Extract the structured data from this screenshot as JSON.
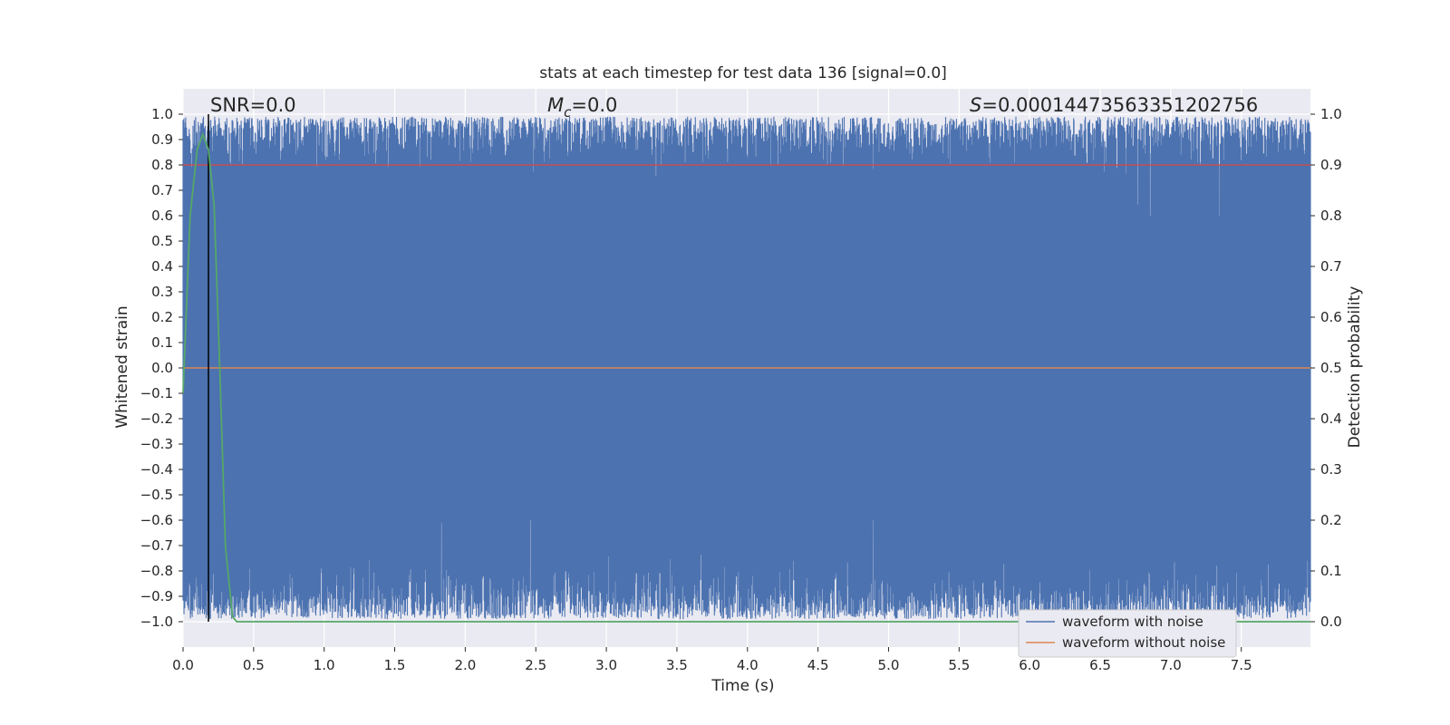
{
  "chart_data": {
    "type": "line",
    "title": "stats at each timestep for test data 136 [signal=0.0]",
    "xlabel": "Time (s)",
    "ylabel": "Whitened strain",
    "y2label": "Detection probability",
    "xlim": [
      0.0,
      7.99
    ],
    "ylim": [
      -1.1,
      1.1
    ],
    "y2lim": [
      -0.05,
      1.05
    ],
    "x_ticks": [
      "0.0",
      "0.5",
      "1.0",
      "1.5",
      "2.0",
      "2.5",
      "3.0",
      "3.5",
      "4.0",
      "4.5",
      "5.0",
      "5.5",
      "6.0",
      "6.5",
      "7.0",
      "7.5"
    ],
    "y_ticks": [
      "1.0",
      "0.9",
      "0.8",
      "0.7",
      "0.6",
      "0.5",
      "0.4",
      "0.3",
      "0.2",
      "0.1",
      "0.0",
      "−0.1",
      "−0.2",
      "−0.3",
      "−0.4",
      "−0.5",
      "−0.6",
      "−0.7",
      "−0.8",
      "−0.9",
      "−1.0"
    ],
    "y2_ticks": [
      "1.0",
      "0.9",
      "0.8",
      "0.7",
      "0.6",
      "0.5",
      "0.4",
      "0.3",
      "0.2",
      "0.1",
      "0.0"
    ],
    "annotations": {
      "snr": "SNR=0.0",
      "mc_symbol": "M",
      "mc_sub": "c",
      "mc_value": "=0.0",
      "s_symbol": "S",
      "s_value": "=0.00014473563351202756"
    },
    "series": [
      {
        "name": "waveform with noise",
        "color": "#4c72b0",
        "envelope": "dense noise filling approx [-1.0, 1.0]"
      },
      {
        "name": "waveform without noise",
        "color": "#dd8452",
        "values": "constant 0.0"
      }
    ],
    "detection_probability": {
      "color": "#55a868",
      "x": [
        0.0,
        0.05,
        0.1,
        0.14,
        0.18,
        0.22,
        0.26,
        0.3,
        0.35,
        0.38,
        7.99
      ],
      "y": [
        0.45,
        0.8,
        0.93,
        0.96,
        0.93,
        0.82,
        0.5,
        0.15,
        0.01,
        0.0,
        0.0
      ]
    },
    "threshold": {
      "color": "#c44e52",
      "y2": 0.9
    },
    "marker_line": {
      "color": "#000000",
      "x": 0.18
    },
    "grid": true,
    "legend_placement": "lower right"
  }
}
